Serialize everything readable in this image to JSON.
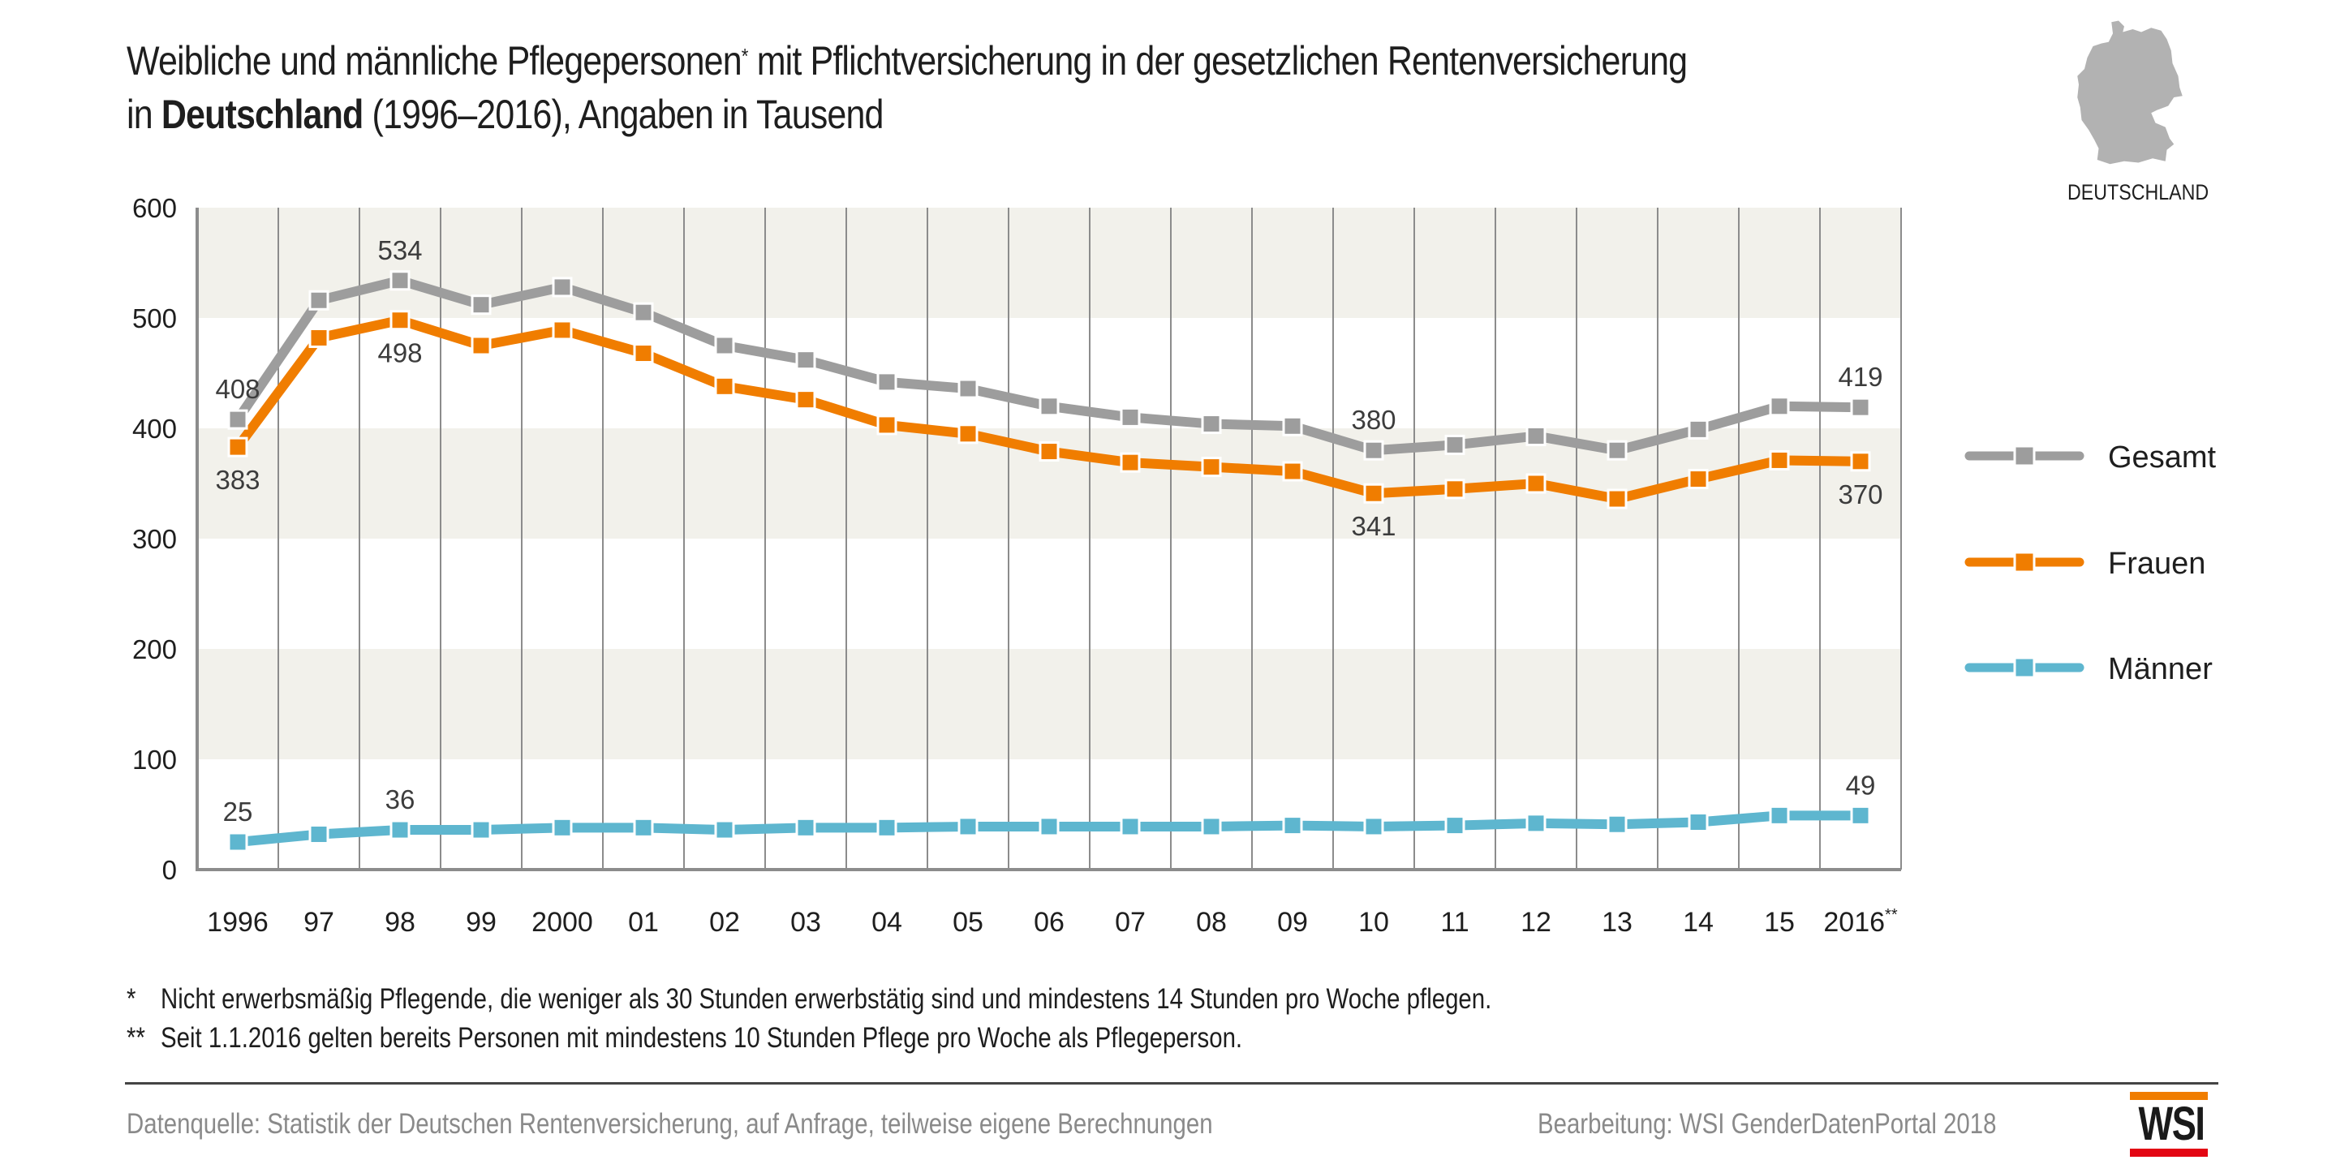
{
  "header": {
    "title_line1_pre": "Weibliche und männliche Pflegepersonen",
    "title_line1_mark": "*",
    "title_line1_post": " mit Pflichtversicherung in der gesetzlichen Rentenversicherung",
    "title_line2_pre": "in ",
    "title_line2_bold": "Deutschland",
    "title_line2_post": " (1996–2016), Angaben in Tausend"
  },
  "map": {
    "icon": "germany-map-icon",
    "label": "DEUTSCHLAND",
    "color": "#b2b2b2"
  },
  "colors": {
    "gesamt": "#9d9d9d",
    "frauen": "#f07d00",
    "maenner": "#5eb6cf",
    "band": "#f2f1eb",
    "grid": "#8c8c8c",
    "axis": "#8c8c8c"
  },
  "chart_data": {
    "type": "line",
    "title": "Weibliche und männliche Pflegepersonen* mit Pflichtversicherung in der gesetzlichen Rentenversicherung in Deutschland (1996–2016), Angaben in Tausend",
    "xlabel": "",
    "ylabel": "",
    "ylim": [
      0,
      600
    ],
    "yticks": [
      0,
      100,
      200,
      300,
      400,
      500,
      600
    ],
    "grid": "vertical lines between years; alternating horizontal bands",
    "legend_position": "right",
    "categories": [
      "1996",
      "97",
      "98",
      "99",
      "2000",
      "01",
      "02",
      "03",
      "04",
      "05",
      "06",
      "07",
      "08",
      "09",
      "10",
      "11",
      "12",
      "13",
      "14",
      "15",
      "2016**"
    ],
    "series": [
      {
        "name": "Gesamt",
        "key": "gesamt",
        "values": [
          408,
          516,
          534,
          512,
          528,
          505,
          475,
          462,
          442,
          436,
          420,
          410,
          404,
          402,
          380,
          385,
          393,
          380,
          399,
          420,
          419
        ],
        "labels": [
          {
            "index": 0,
            "text": "408",
            "pos": "above"
          },
          {
            "index": 2,
            "text": "534",
            "pos": "above"
          },
          {
            "index": 14,
            "text": "380",
            "pos": "above"
          },
          {
            "index": 20,
            "text": "419",
            "pos": "above"
          }
        ]
      },
      {
        "name": "Frauen",
        "key": "frauen",
        "values": [
          383,
          482,
          498,
          475,
          489,
          468,
          438,
          426,
          403,
          395,
          379,
          369,
          365,
          361,
          341,
          345,
          350,
          336,
          354,
          371,
          370
        ],
        "labels": [
          {
            "index": 0,
            "text": "383",
            "pos": "below"
          },
          {
            "index": 2,
            "text": "498",
            "pos": "below"
          },
          {
            "index": 14,
            "text": "341",
            "pos": "below"
          },
          {
            "index": 20,
            "text": "370",
            "pos": "below"
          }
        ]
      },
      {
        "name": "Männer",
        "key": "maenner",
        "values": [
          25,
          32,
          36,
          36,
          38,
          38,
          36,
          38,
          38,
          39,
          39,
          39,
          39,
          40,
          39,
          40,
          42,
          41,
          43,
          49,
          49
        ],
        "labels": [
          {
            "index": 0,
            "text": "25",
            "pos": "above"
          },
          {
            "index": 2,
            "text": "36",
            "pos": "above"
          },
          {
            "index": 20,
            "text": "49",
            "pos": "above"
          }
        ]
      }
    ]
  },
  "footnotes": [
    {
      "mark": "*",
      "text": "Nicht erwerbsmäßig Pflegende, die weniger als 30 Stunden erwerbstätig sind und mindestens 14 Stunden pro Woche pflegen."
    },
    {
      "mark": "**",
      "text": "Seit 1.1.2016 gelten bereits Personen mit mindestens 10 Stunden Pflege pro Woche als Pflegeperson."
    }
  ],
  "footer": {
    "source": "Datenquelle: Statistik der Deutschen Rentenversicherung, auf Anfrage, teilweise eigene Berechnungen",
    "credit": "Bearbeitung: WSI GenderDatenPortal 2018",
    "logo_text": "WSI",
    "logo_top_color": "#f07d00",
    "logo_bottom_color": "#e30613"
  }
}
